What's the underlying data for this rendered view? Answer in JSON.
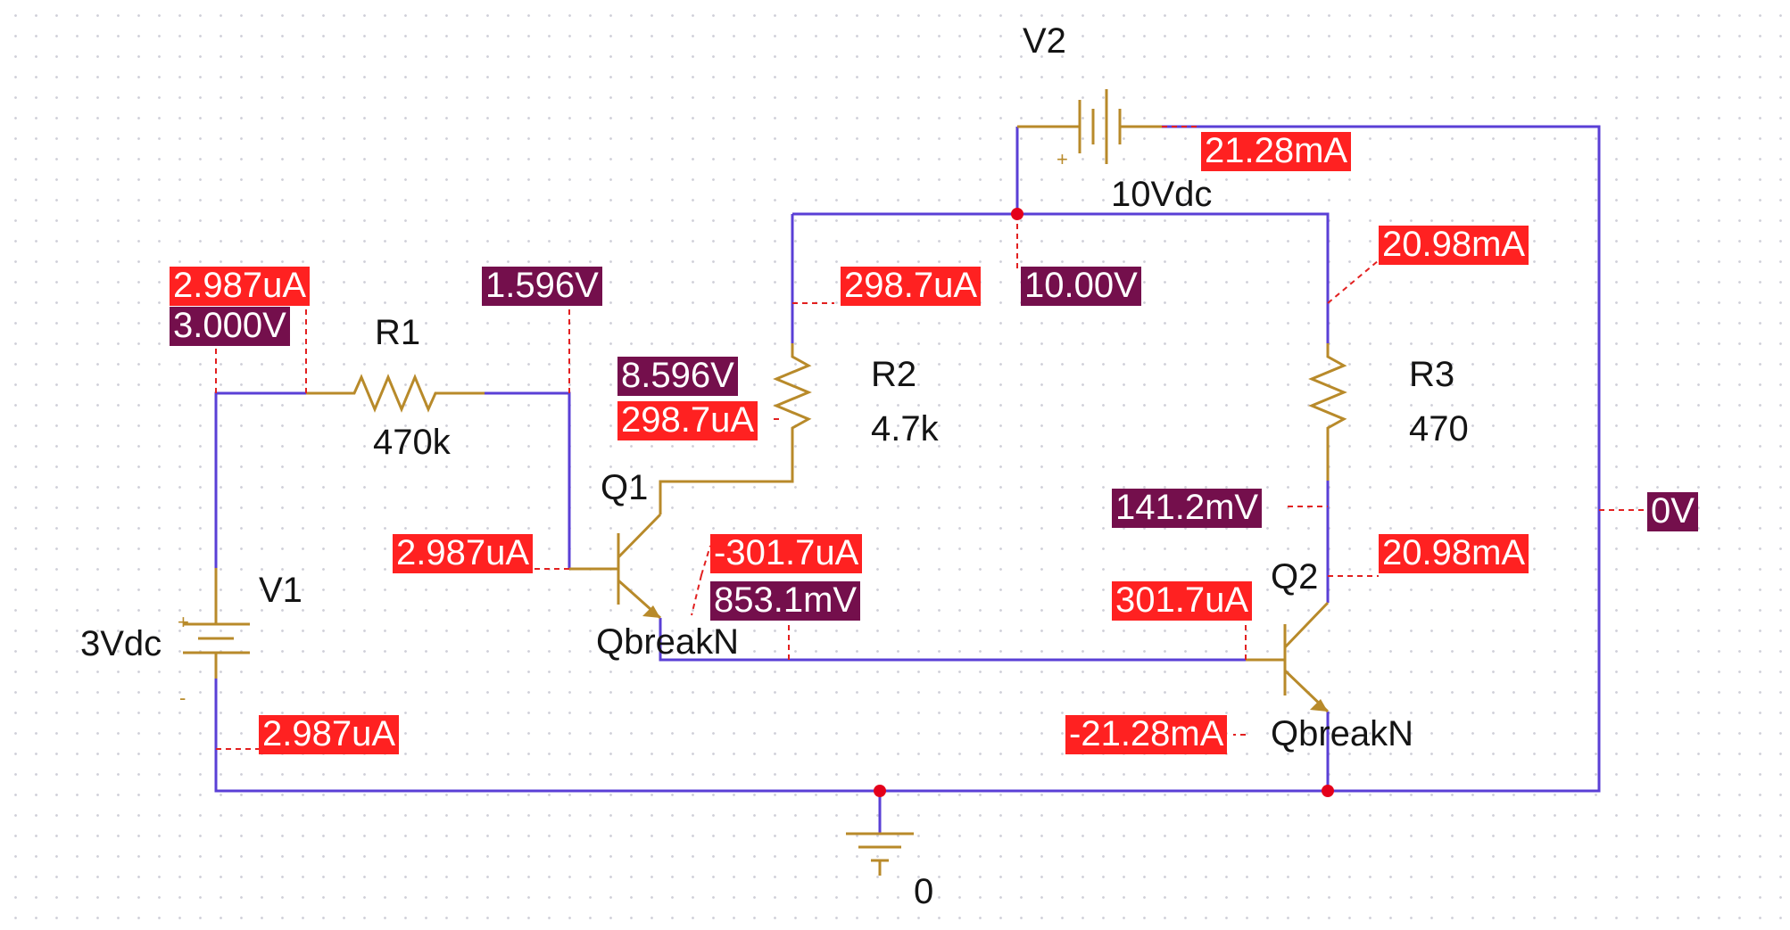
{
  "components": {
    "v1": {
      "ref": "V1",
      "value": "3Vdc",
      "plus": "+",
      "minus": "-"
    },
    "v2": {
      "ref": "V2",
      "value": "10Vdc",
      "plus": "+"
    },
    "r1": {
      "ref": "R1",
      "value": "470k"
    },
    "r2": {
      "ref": "R2",
      "value": "4.7k"
    },
    "r3": {
      "ref": "R3",
      "value": "470"
    },
    "q1": {
      "ref": "Q1",
      "model": "QbreakN"
    },
    "q2": {
      "ref": "Q2",
      "model": "QbreakN"
    },
    "ground": {
      "label": "0"
    }
  },
  "annotations": {
    "v1_top_current": "2.987uA",
    "v1_top_voltage": "3.000V",
    "r1_right_voltage": "1.596V",
    "q1_base_current": "2.987uA",
    "v1_bottom_current": "2.987uA",
    "r2_top_current": "298.7uA",
    "v2_plus_voltage": "10.00V",
    "v2_current": "21.28mA",
    "r3_top_current": "20.98mA",
    "q1_collector_voltage": "8.596V",
    "q1_collector_current": "298.7uA",
    "q1_emitter_current": "-301.7uA",
    "q1_emitter_voltage": "853.1mV",
    "q2_collector_voltage": "141.2mV",
    "q2_collector_current": "20.98mA",
    "q2_base_current": "301.7uA",
    "q2_emitter_current": "-21.28mA",
    "ground_voltage": "0V"
  },
  "colors": {
    "wire": "#5a3fd6",
    "part": "#b88a2a",
    "current_label_bg": "#ff2121",
    "voltage_label_bg": "#740f4c",
    "node_dot": "#e4001b"
  }
}
